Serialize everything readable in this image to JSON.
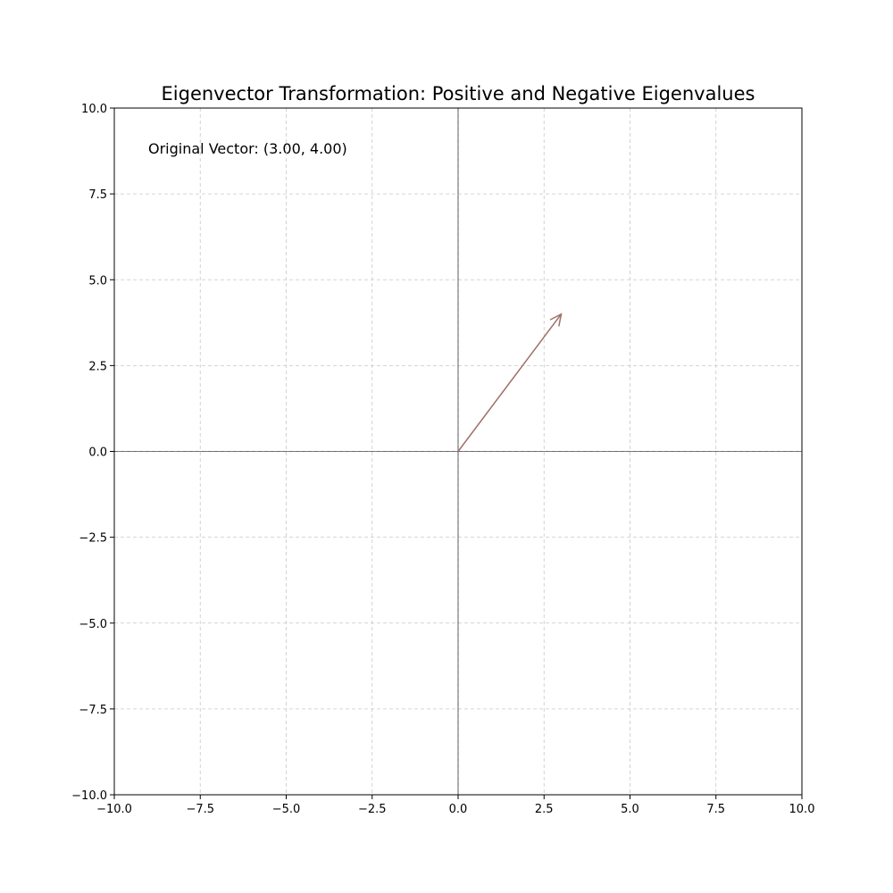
{
  "chart_data": {
    "type": "vector",
    "title": "Eigenvector Transformation: Positive and Negative Eigenvalues",
    "annotation": "Original Vector: (3.00, 4.00)",
    "vectors": [
      {
        "origin": [
          0,
          0
        ],
        "components": [
          3,
          4
        ],
        "color": "#a0706a"
      }
    ],
    "xlim": [
      -10,
      10
    ],
    "ylim": [
      -10,
      10
    ],
    "xticks": [
      {
        "value": -10,
        "label": "−10.0"
      },
      {
        "value": -7.5,
        "label": "−7.5"
      },
      {
        "value": -5,
        "label": "−5.0"
      },
      {
        "value": -2.5,
        "label": "−2.5"
      },
      {
        "value": 0,
        "label": "0.0"
      },
      2.5,
      {
        "value": 5,
        "label": "5.0"
      },
      7.5,
      {
        "value": 10,
        "label": "10.0"
      }
    ],
    "yticks": [
      {
        "value": -10,
        "label": "−10.0"
      },
      {
        "value": -7.5,
        "label": "−7.5"
      },
      {
        "value": -5,
        "label": "−5.0"
      },
      {
        "value": -2.5,
        "label": "−2.5"
      },
      {
        "value": 0,
        "label": "0.0"
      },
      2.5,
      {
        "value": 5,
        "label": "5.0"
      },
      7.5,
      {
        "value": 10,
        "label": "10.0"
      }
    ],
    "grid": true,
    "zero_lines": true
  }
}
